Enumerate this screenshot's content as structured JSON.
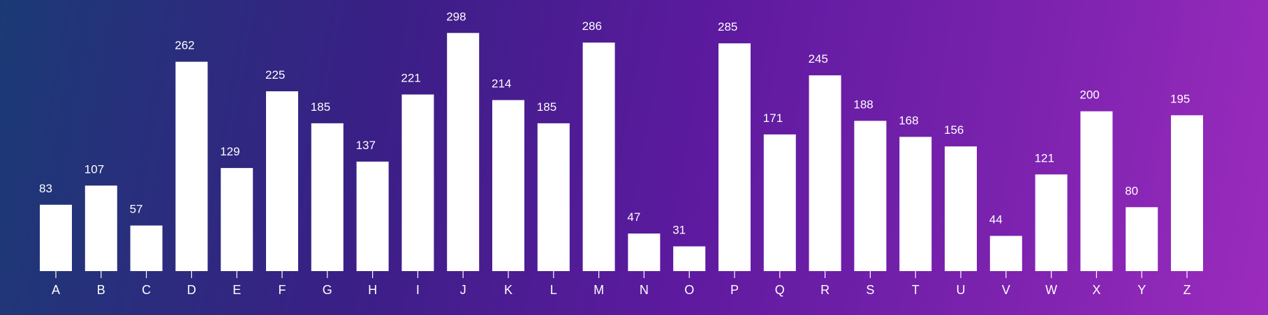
{
  "chart_data": {
    "type": "bar",
    "title": "",
    "xlabel": "",
    "ylabel": "",
    "categories": [
      "A",
      "B",
      "C",
      "D",
      "E",
      "F",
      "G",
      "H",
      "I",
      "J",
      "K",
      "L",
      "M",
      "N",
      "O",
      "P",
      "Q",
      "R",
      "S",
      "T",
      "U",
      "V",
      "W",
      "X",
      "Y",
      "Z"
    ],
    "values": [
      83,
      107,
      57,
      262,
      129,
      225,
      185,
      137,
      221,
      298,
      214,
      185,
      286,
      47,
      31,
      285,
      171,
      245,
      188,
      168,
      156,
      44,
      121,
      200,
      80,
      195
    ],
    "ylim": [
      0,
      300
    ],
    "grid": false,
    "show_value_labels": true,
    "colors": {
      "bar": "#ffffff",
      "text": "#ffffff",
      "background_start": "#1b3a75",
      "background_end": "#9b2bbd"
    }
  }
}
